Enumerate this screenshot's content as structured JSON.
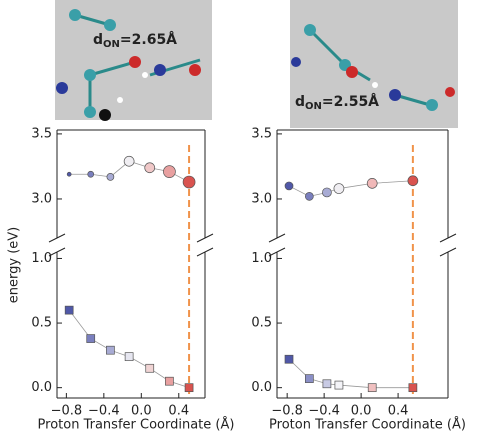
{
  "chart_data": [
    {
      "type": "scatter",
      "ylabel": "energy (eV)",
      "xlabel": "Proton Transfer Coordinate (Å)",
      "image_label": {
        "symbol": "d",
        "sub": "ON",
        "rest": "=2.65Å"
      },
      "xlim": [
        -0.9,
        0.68
      ],
      "xticks": [
        {
          "value": -0.8,
          "label": "−0.8"
        },
        {
          "value": -0.4,
          "label": "−0.4"
        },
        {
          "value": 0,
          "label": "0.0"
        },
        {
          "value": 0.4,
          "label": "0.4"
        }
      ],
      "ylim_upper": [
        2.7,
        3.53
      ],
      "yticks_upper": [
        {
          "value": 3,
          "label": "3.0"
        },
        {
          "value": 3.5,
          "label": "3.5"
        }
      ],
      "ylim": [
        -0.08,
        1.05
      ],
      "yticks": [
        {
          "value": 0,
          "label": "0.0"
        },
        {
          "value": 0.5,
          "label": "0.5"
        },
        {
          "value": 1,
          "label": "1.0"
        }
      ],
      "vline": 0.51,
      "vline_color": "#f0924a",
      "series": [
        {
          "marker": "circle",
          "axis": "upper",
          "x": [
            -0.77,
            -0.54,
            -0.33,
            -0.13,
            0.09,
            0.3,
            0.51
          ],
          "values": [
            3.19,
            3.19,
            3.17,
            3.29,
            3.24,
            3.21,
            3.13
          ],
          "sizes": [
            2,
            3,
            3.5,
            5,
            5,
            6,
            6
          ],
          "colors": [
            "#5058a8",
            "#7a7fbe",
            "#a8abd4",
            "#f0eef2",
            "#f0c8c8",
            "#e8a0a0",
            "#d9534f"
          ]
        },
        {
          "marker": "square",
          "axis": "lower",
          "x": [
            -0.77,
            -0.54,
            -0.33,
            -0.13,
            0.09,
            0.3,
            0.51
          ],
          "values": [
            0.6,
            0.38,
            0.29,
            0.24,
            0.15,
            0.05,
            0.0
          ],
          "colors": [
            "#5058a8",
            "#7a7fbe",
            "#a8abd4",
            "#e6e6f0",
            "#f0d4d4",
            "#e8a0a0",
            "#d9534f"
          ]
        }
      ]
    },
    {
      "type": "scatter",
      "xlabel": "Proton Transfer Coordinate (Å)",
      "image_label": {
        "symbol": "d",
        "sub": "ON",
        "rest": "=2.55Å"
      },
      "xlim": [
        -0.91,
        0.94
      ],
      "xticks": [
        {
          "value": -0.8,
          "label": "−0.8"
        },
        {
          "value": -0.4,
          "label": "−0.4"
        },
        {
          "value": 0,
          "label": "0.0"
        },
        {
          "value": 0.4,
          "label": "0.4"
        }
      ],
      "ylim_upper": [
        2.7,
        3.53
      ],
      "yticks_upper": [
        {
          "value": 3,
          "label": "3.0"
        },
        {
          "value": 3.5,
          "label": "3.5"
        }
      ],
      "ylim": [
        -0.08,
        1.05
      ],
      "yticks": [
        {
          "value": 0,
          "label": "0.0"
        },
        {
          "value": 0.5,
          "label": "0.5"
        },
        {
          "value": 1,
          "label": "1.0"
        }
      ],
      "vline": 0.56,
      "vline_color": "#f0924a",
      "series": [
        {
          "marker": "circle",
          "axis": "upper",
          "x": [
            -0.78,
            -0.56,
            -0.37,
            -0.24,
            0.12,
            0.56
          ],
          "values": [
            3.1,
            3.02,
            3.05,
            3.08,
            3.12,
            3.14
          ],
          "sizes": [
            4,
            4,
            4.5,
            5,
            5,
            5
          ],
          "colors": [
            "#5058a8",
            "#7a7fbe",
            "#a8abd4",
            "#f0eef2",
            "#f0b8b8",
            "#d9534f"
          ]
        },
        {
          "marker": "square",
          "axis": "lower",
          "x": [
            -0.78,
            -0.56,
            -0.37,
            -0.24,
            0.12,
            0.56
          ],
          "values": [
            0.22,
            0.07,
            0.03,
            0.02,
            0.0,
            0.0
          ],
          "colors": [
            "#5058a8",
            "#8a8fc6",
            "#c8cae4",
            "#f4f4f8",
            "#f0c0c0",
            "#d9534f"
          ]
        }
      ]
    }
  ]
}
